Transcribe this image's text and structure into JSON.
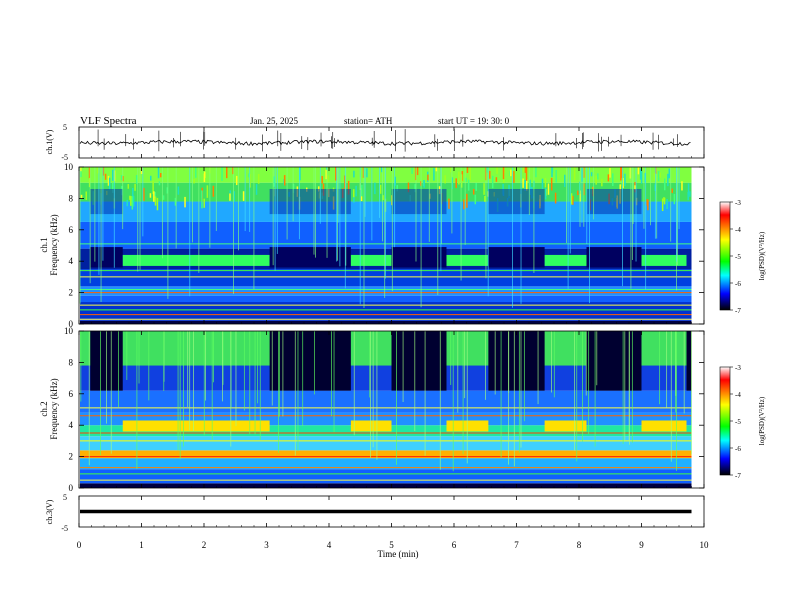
{
  "header": {
    "title": "VLF  Spectra",
    "date": "Jan. 25, 2025",
    "station": "station= ATH",
    "start_ut": "start  UT  =   19: 30: 0"
  },
  "panels": {
    "ch1_waveform": {
      "ylabel": "ch.1(V)",
      "ymax_label": "5",
      "ymin_label": "-5"
    },
    "ch1_spectrogram": {
      "ylabel_ch": "ch.1",
      "ylabel": "Frequency  (kHz)",
      "yticks": [
        "0",
        "2",
        "4",
        "6",
        "8",
        "10"
      ]
    },
    "ch2_spectrogram": {
      "ylabel_ch": "ch.2",
      "ylabel": "Frequency  (kHz)",
      "yticks": [
        "0",
        "2",
        "4",
        "6",
        "8",
        "10"
      ]
    },
    "ch3_waveform": {
      "ylabel": "ch.3(V)",
      "ymax_label": "5",
      "ymin_label": "-5"
    }
  },
  "colorbar": {
    "label": "log(PSD)(V²/Hz)",
    "ticks": [
      "-3",
      "-4",
      "-5",
      "-6",
      "-7"
    ],
    "colors": [
      "#ffffff",
      "#ff0000",
      "#ffff00",
      "#00ff00",
      "#00ffff",
      "#0000ff",
      "#000000"
    ]
  },
  "xaxis": {
    "label": "Time  (min)",
    "ticks": [
      "0",
      "1",
      "2",
      "3",
      "4",
      "5",
      "6",
      "7",
      "8",
      "9",
      "10"
    ]
  },
  "chart_data": {
    "type": "heatmap",
    "title": "VLF  Spectra",
    "xlabel": "Time  (min)",
    "xlim": [
      0,
      10
    ],
    "data_end_min": 9.8,
    "panels": [
      {
        "name": "ch.1(V)",
        "kind": "waveform",
        "ylim": [
          -5,
          5
        ],
        "level": 0
      },
      {
        "name": "ch.1",
        "kind": "spectrogram",
        "ylim": [
          0,
          10
        ],
        "unit": "kHz"
      },
      {
        "name": "ch.2",
        "kind": "spectrogram",
        "ylim": [
          0,
          10
        ],
        "unit": "kHz"
      },
      {
        "name": "ch.3(V)",
        "kind": "waveform",
        "ylim": [
          -5,
          5
        ],
        "level": 0
      }
    ],
    "colorbar_range": [
      -7,
      -3
    ],
    "ch1_band_4khz_segments": [
      {
        "start": 0.18,
        "end": 0.7,
        "state": "dark"
      },
      {
        "start": 0.7,
        "end": 3.05,
        "state": "bright"
      },
      {
        "start": 3.05,
        "end": 4.35,
        "state": "dark"
      },
      {
        "start": 4.35,
        "end": 5.0,
        "state": "bright"
      },
      {
        "start": 5.0,
        "end": 5.88,
        "state": "dark"
      },
      {
        "start": 5.88,
        "end": 6.55,
        "state": "bright"
      },
      {
        "start": 6.55,
        "end": 7.45,
        "state": "dark"
      },
      {
        "start": 7.45,
        "end": 8.12,
        "state": "bright"
      },
      {
        "start": 8.12,
        "end": 9.0,
        "state": "dark"
      },
      {
        "start": 9.0,
        "end": 9.72,
        "state": "bright"
      }
    ],
    "ch2_dark_top_segments": [
      {
        "start": 0.18,
        "end": 0.7
      },
      {
        "start": 3.05,
        "end": 4.35
      },
      {
        "start": 5.0,
        "end": 5.88
      },
      {
        "start": 6.55,
        "end": 7.45
      },
      {
        "start": 8.12,
        "end": 9.0
      },
      {
        "start": 9.72,
        "end": 9.8
      }
    ]
  }
}
